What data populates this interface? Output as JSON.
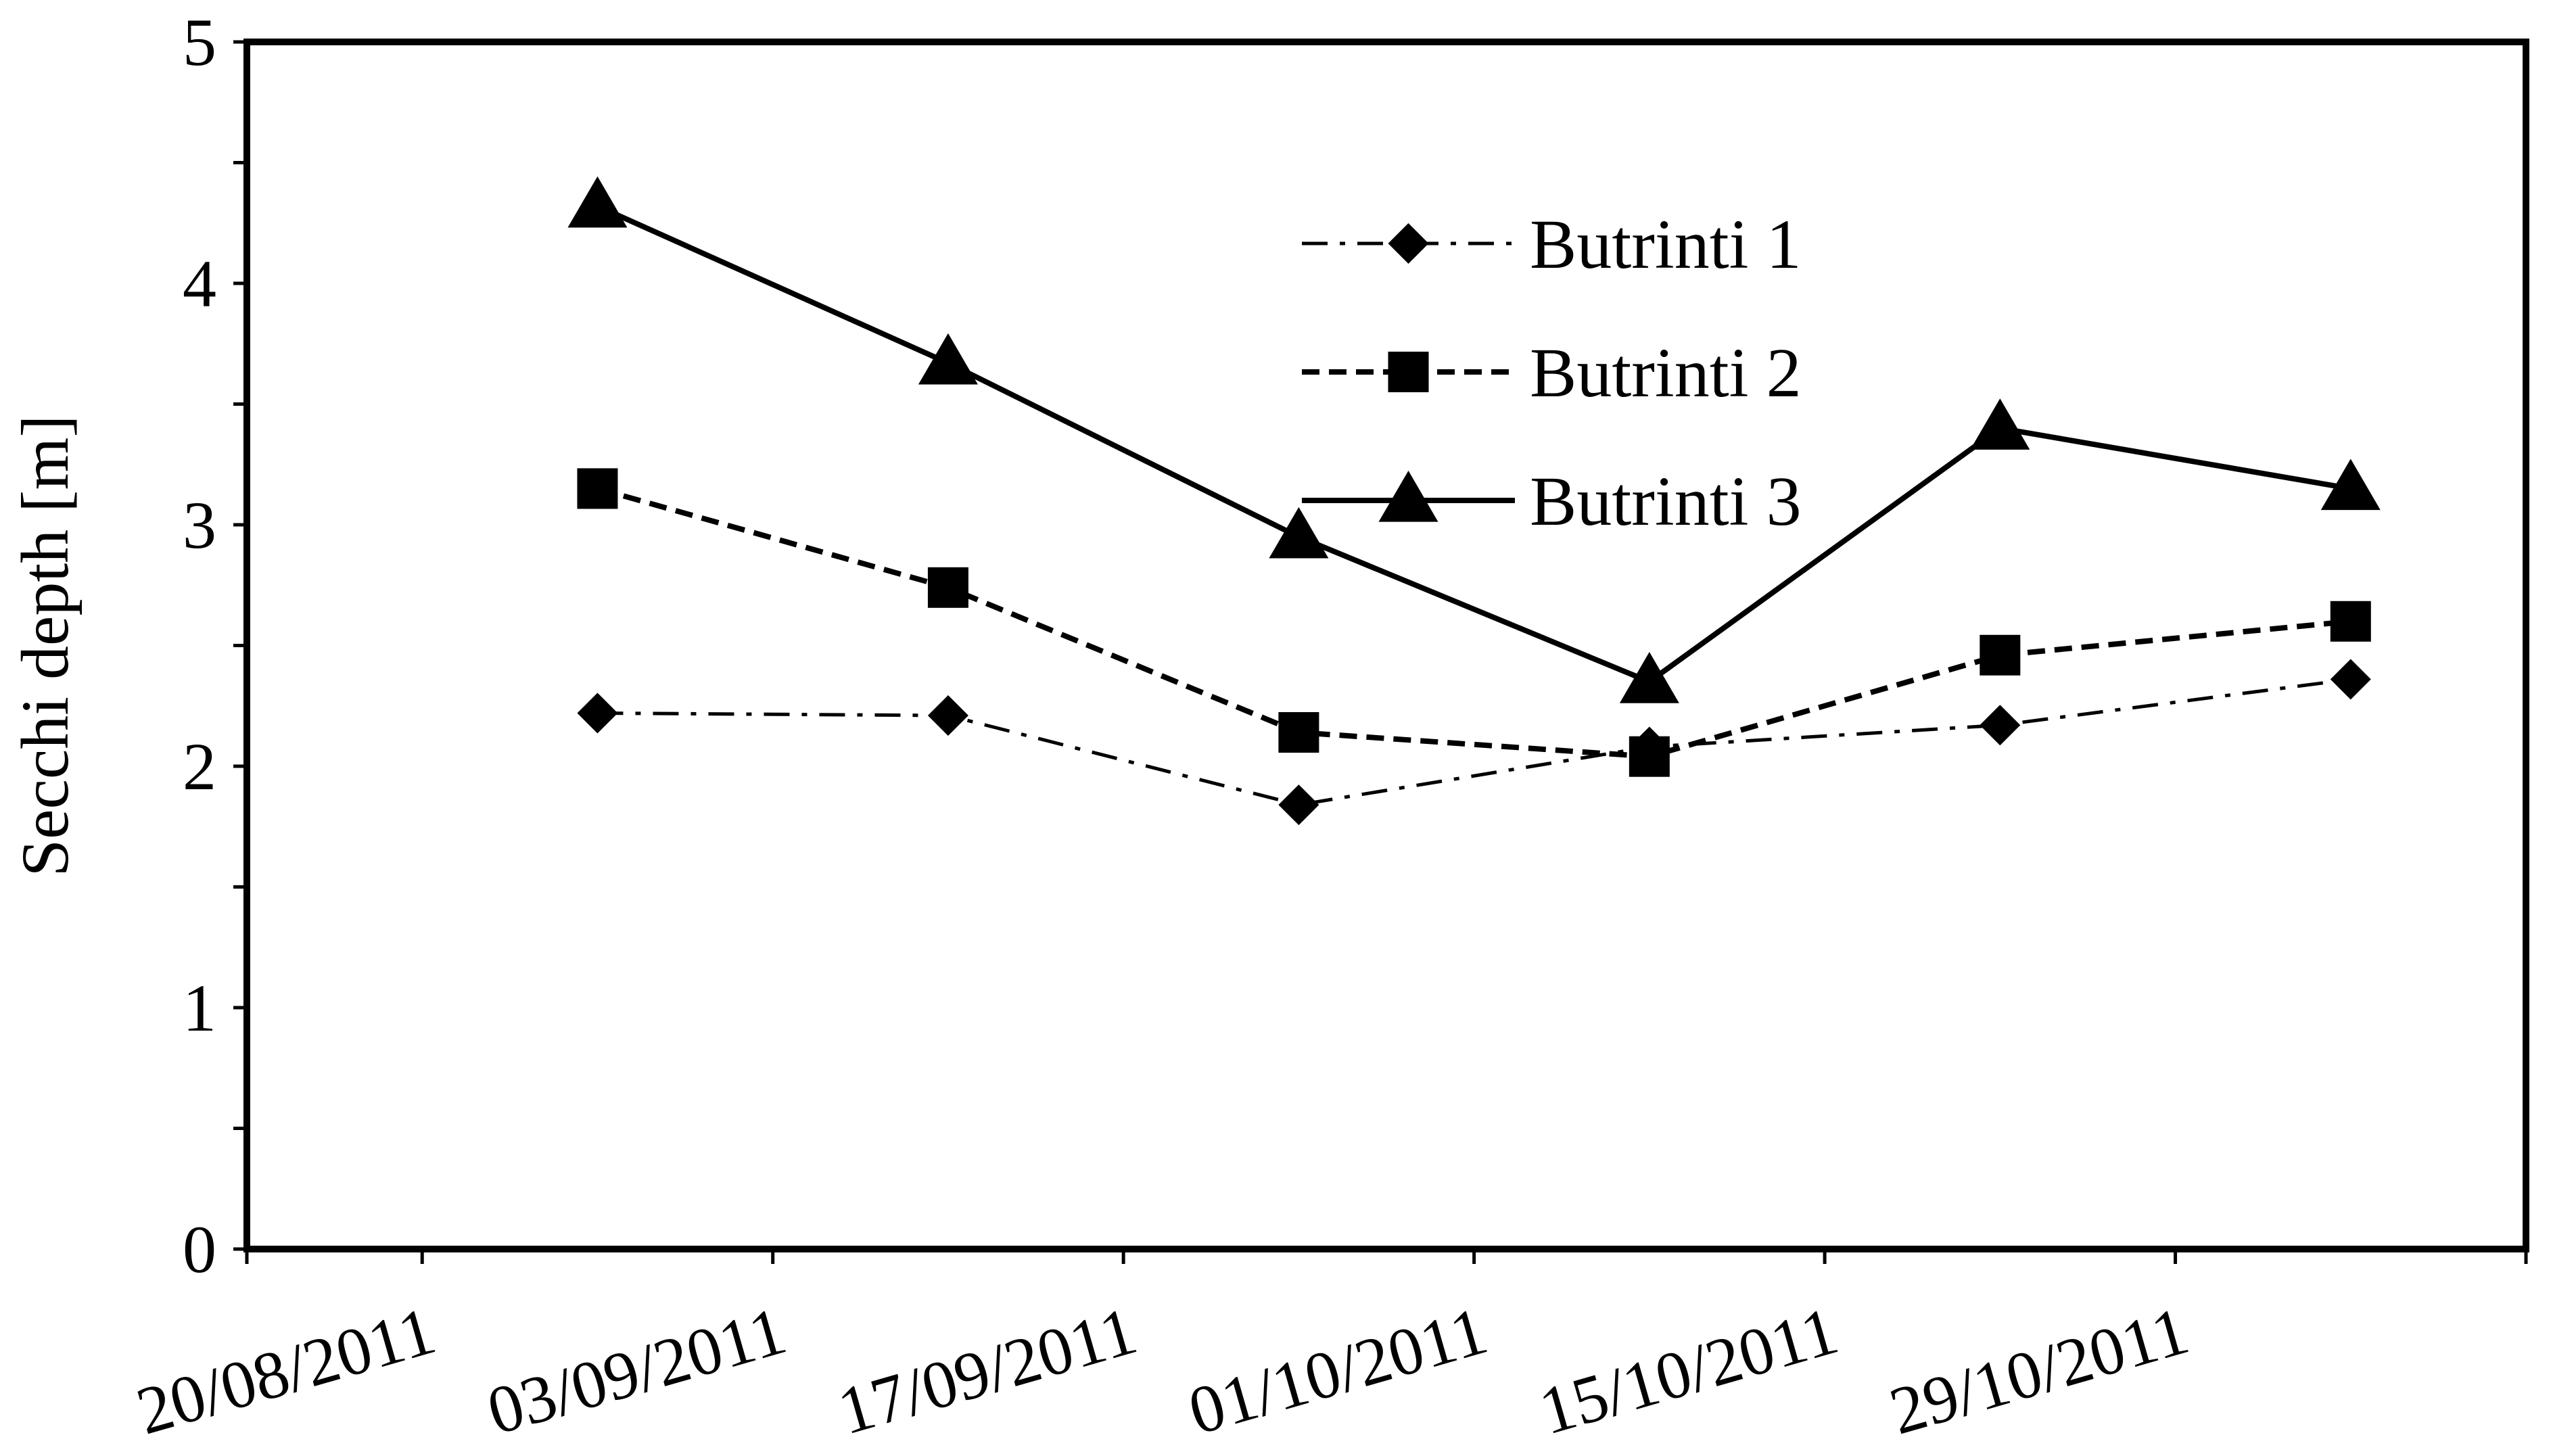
{
  "chart_data": {
    "type": "line",
    "title": "",
    "xlabel": "",
    "ylabel": "Secchi depth [m]",
    "ylim": [
      0,
      5
    ],
    "xlim": [
      "13/08/2011",
      "12/11/2011"
    ],
    "y_ticks": [
      "0",
      "1",
      "2",
      "3",
      "4",
      "5"
    ],
    "x_ticks": [
      "20/08/2011",
      "03/09/2011",
      "17/09/2011",
      "01/10/2011",
      "15/10/2011",
      "29/10/2011"
    ],
    "grid": false,
    "legend_position": "top-right",
    "x": [
      "27/08/2011",
      "10/09/2011",
      "24/09/2011",
      "08/10/2011",
      "22/10/2011",
      "05/11/2011"
    ],
    "series": [
      {
        "name": "Butrinti 1",
        "values": [
          2.22,
          2.21,
          1.84,
          2.08,
          2.17,
          2.36
        ],
        "marker": "diamond",
        "line_style": "dash-dot",
        "color": "#000000"
      },
      {
        "name": "Butrinti 2",
        "values": [
          3.15,
          2.74,
          2.14,
          2.04,
          2.46,
          2.6
        ],
        "marker": "square",
        "line_style": "dashed",
        "color": "#000000"
      },
      {
        "name": "Butrinti 3",
        "values": [
          4.32,
          3.67,
          2.95,
          2.35,
          3.4,
          3.15
        ],
        "marker": "triangle",
        "line_style": "solid",
        "color": "#000000"
      }
    ]
  }
}
